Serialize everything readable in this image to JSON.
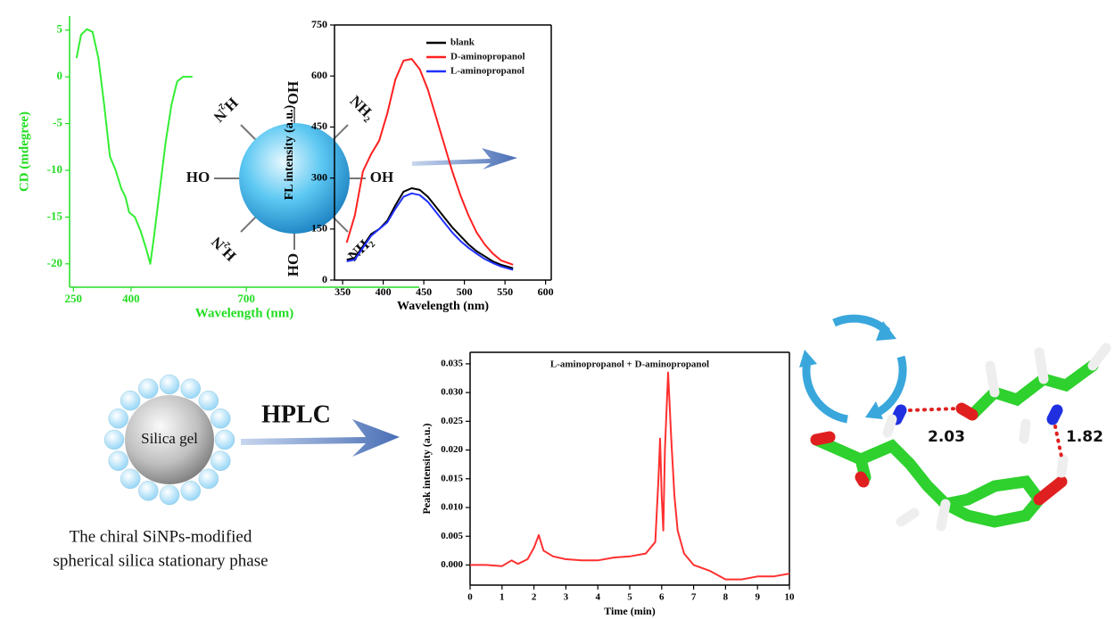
{
  "chart_data": [
    {
      "type": "line",
      "x_label": "Wavelength (nm)",
      "y_label": "CD (mdegree)",
      "color": "#33ee33",
      "axis_color": "#22dd22",
      "box": false,
      "xlim": [
        240,
        1150
      ],
      "ylim": [
        -22.5,
        6.5
      ],
      "xticks": [
        250,
        400,
        700
      ],
      "yticks": [
        5,
        0,
        -5,
        -10,
        -15,
        -20
      ],
      "x": [
        258,
        270,
        285,
        300,
        315,
        330,
        345,
        360,
        375,
        385,
        395,
        410,
        425,
        440,
        450,
        460,
        475,
        490,
        505,
        520,
        535,
        560
      ],
      "values": [
        2,
        4.5,
        5.1,
        4.8,
        2,
        -3,
        -8.5,
        -10,
        -12,
        -12.8,
        -14.5,
        -15,
        -16.5,
        -18.5,
        -20,
        -17,
        -12,
        -7,
        -3,
        -0.5,
        0,
        0
      ]
    },
    {
      "type": "line",
      "x_label": "Wavelength (nm)",
      "y_label": "FL intensity (a.u.)",
      "axis_color": "#000000",
      "box": true,
      "legend": "upper right",
      "xlim": [
        340,
        607
      ],
      "ylim": [
        0,
        750
      ],
      "xticks": [
        350,
        400,
        450,
        500,
        550,
        600
      ],
      "yticks": [
        0,
        150,
        300,
        450,
        600,
        750
      ],
      "x": [
        355,
        365,
        375,
        385,
        395,
        405,
        415,
        425,
        435,
        445,
        455,
        465,
        475,
        485,
        495,
        505,
        515,
        525,
        535,
        545,
        560
      ],
      "series": [
        {
          "name": "blank",
          "color": "#000000",
          "values": [
            60,
            65,
            100,
            135,
            150,
            175,
            220,
            260,
            270,
            265,
            245,
            215,
            185,
            155,
            130,
            105,
            85,
            70,
            55,
            45,
            35
          ]
        },
        {
          "name": "D-aminopropanol",
          "color": "#ff2020",
          "values": [
            110,
            190,
            320,
            370,
            410,
            490,
            590,
            645,
            650,
            620,
            560,
            480,
            400,
            320,
            250,
            190,
            140,
            105,
            78,
            58,
            45
          ]
        },
        {
          "name": "L-aminopropanol",
          "color": "#2030ff",
          "values": [
            55,
            60,
            95,
            130,
            150,
            170,
            210,
            245,
            255,
            250,
            230,
            200,
            170,
            140,
            115,
            95,
            78,
            62,
            50,
            40,
            30
          ]
        }
      ]
    },
    {
      "type": "line",
      "title": "L-aminopropanol + D-aminopropanol",
      "x_label": "Time (min)",
      "y_label": "Peak intensity (a.u.)",
      "color": "#ff3030",
      "axis_color": "#000000",
      "box": true,
      "xlim": [
        0,
        10
      ],
      "ylim": [
        -0.0035,
        0.037
      ],
      "xticks": [
        0,
        1,
        2,
        3,
        4,
        5,
        6,
        7,
        8,
        9,
        10
      ],
      "yticks": [
        {
          "value": 0,
          "label": "0.000"
        },
        {
          "value": 0.005,
          "label": "0.005"
        },
        {
          "value": 0.01,
          "label": "0.010"
        },
        {
          "value": 0.015,
          "label": "0.015"
        },
        {
          "value": 0.02,
          "label": "0.020"
        },
        {
          "value": 0.025,
          "label": "0.025"
        },
        {
          "value": 0.03,
          "label": "0.030"
        },
        {
          "value": 0.035,
          "label": "0.035"
        }
      ],
      "x": [
        0,
        0.5,
        1,
        1.3,
        1.5,
        1.8,
        2.0,
        2.15,
        2.3,
        2.6,
        3,
        3.5,
        4,
        4.5,
        5,
        5.5,
        5.8,
        5.9,
        5.95,
        6.0,
        6.05,
        6.1,
        6.2,
        6.3,
        6.4,
        6.5,
        6.7,
        7,
        7.5,
        8,
        8.5,
        9,
        9.5,
        10
      ],
      "values": [
        0,
        0,
        -0.0002,
        0.0008,
        0.0002,
        0.001,
        0.003,
        0.0052,
        0.0025,
        0.0015,
        0.001,
        0.0008,
        0.0008,
        0.0013,
        0.0015,
        0.002,
        0.004,
        0.015,
        0.022,
        0.012,
        0.006,
        0.02,
        0.0335,
        0.022,
        0.012,
        0.006,
        0.002,
        0,
        -0.001,
        -0.0025,
        -0.0025,
        -0.002,
        -0.002,
        -0.0015
      ]
    }
  ],
  "diagram": {
    "nanoparticle_labels": [
      "OH",
      "NH₂",
      "OH",
      "NH₂",
      "HO",
      "H₂N",
      "HO",
      "H₂N"
    ],
    "hplc_label": "HPLC",
    "silica_label": "Silica gel",
    "caption": [
      "The chiral SiNPs-modified",
      "spherical silica stationary phase"
    ],
    "distances": [
      "2.03",
      "1.82"
    ]
  }
}
